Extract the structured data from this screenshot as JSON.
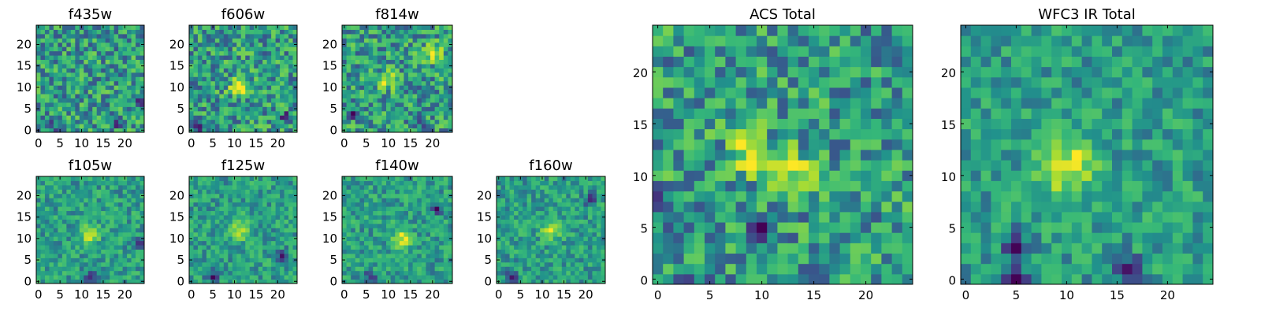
{
  "chart_data": [
    {
      "type": "heatmap",
      "title": "f435w",
      "x_ticks": [
        0,
        5,
        10,
        15,
        20
      ],
      "y_ticks": [
        0,
        5,
        10,
        15,
        20
      ],
      "xlim": [
        0,
        25
      ],
      "ylim": [
        0,
        25
      ],
      "grid_size": [
        25,
        25
      ],
      "colormap": "viridis",
      "bright_regions": [],
      "dark_regions": [
        {
          "x": 3,
          "y": 1
        },
        {
          "x": 18,
          "y": 2
        },
        {
          "x": 24,
          "y": 7
        }
      ]
    },
    {
      "type": "heatmap",
      "title": "f606w",
      "x_ticks": [
        0,
        5,
        10,
        15,
        20
      ],
      "y_ticks": [
        0,
        5,
        10,
        15,
        20
      ],
      "xlim": [
        0,
        25
      ],
      "ylim": [
        0,
        25
      ],
      "grid_size": [
        25,
        25
      ],
      "colormap": "viridis",
      "bright_regions": [
        {
          "x": 11,
          "y": 10
        }
      ],
      "dark_regions": [
        {
          "x": 2,
          "y": 1
        },
        {
          "x": 22,
          "y": 3
        }
      ]
    },
    {
      "type": "heatmap",
      "title": "f814w",
      "x_ticks": [
        0,
        5,
        10,
        15,
        20
      ],
      "y_ticks": [
        0,
        5,
        10,
        15,
        20
      ],
      "xlim": [
        0,
        25
      ],
      "ylim": [
        0,
        25
      ],
      "grid_size": [
        25,
        25
      ],
      "colormap": "viridis",
      "bright_regions": [
        {
          "x": 10,
          "y": 12
        },
        {
          "x": 20,
          "y": 18
        }
      ],
      "dark_regions": [
        {
          "x": 2,
          "y": 4
        },
        {
          "x": 17,
          "y": 2
        }
      ]
    },
    {
      "type": "heatmap",
      "title": "f105w",
      "x_ticks": [
        0,
        5,
        10,
        15,
        20
      ],
      "y_ticks": [
        0,
        5,
        10,
        15,
        20
      ],
      "xlim": [
        0,
        25
      ],
      "ylim": [
        0,
        25
      ],
      "grid_size": [
        25,
        25
      ],
      "colormap": "viridis",
      "bright_regions": [
        {
          "x": 12,
          "y": 11
        }
      ],
      "dark_regions": [
        {
          "x": 24,
          "y": 9
        },
        {
          "x": 12,
          "y": 1
        }
      ]
    },
    {
      "type": "heatmap",
      "title": "f125w",
      "x_ticks": [
        0,
        5,
        10,
        15,
        20
      ],
      "y_ticks": [
        0,
        5,
        10,
        15,
        20
      ],
      "xlim": [
        0,
        25
      ],
      "ylim": [
        0,
        25
      ],
      "grid_size": [
        25,
        25
      ],
      "colormap": "viridis",
      "bright_regions": [
        {
          "x": 11,
          "y": 12
        }
      ],
      "dark_regions": [
        {
          "x": 5,
          "y": 1
        },
        {
          "x": 21,
          "y": 6
        }
      ]
    },
    {
      "type": "heatmap",
      "title": "f140w",
      "x_ticks": [
        0,
        5,
        10,
        15,
        20
      ],
      "y_ticks": [
        0,
        5,
        10,
        15,
        20
      ],
      "xlim": [
        0,
        25
      ],
      "ylim": [
        0,
        25
      ],
      "grid_size": [
        25,
        25
      ],
      "colormap": "viridis",
      "bright_regions": [
        {
          "x": 13,
          "y": 10
        }
      ],
      "dark_regions": [
        {
          "x": 21,
          "y": 17
        },
        {
          "x": 6,
          "y": 1
        }
      ]
    },
    {
      "type": "heatmap",
      "title": "f160w",
      "x_ticks": [
        0,
        5,
        10,
        15,
        20
      ],
      "y_ticks": [
        0,
        5,
        10,
        15,
        20
      ],
      "xlim": [
        0,
        25
      ],
      "ylim": [
        0,
        25
      ],
      "grid_size": [
        25,
        25
      ],
      "colormap": "viridis",
      "bright_regions": [
        {
          "x": 12,
          "y": 12
        }
      ],
      "dark_regions": [
        {
          "x": 3,
          "y": 1
        },
        {
          "x": 21,
          "y": 19
        }
      ]
    },
    {
      "type": "heatmap",
      "title": "ACS Total",
      "x_ticks": [
        0,
        5,
        10,
        15,
        20
      ],
      "y_ticks": [
        0,
        5,
        10,
        15,
        20
      ],
      "xlim": [
        0,
        25
      ],
      "ylim": [
        0,
        25
      ],
      "grid_size": [
        25,
        25
      ],
      "colormap": "viridis",
      "bright_regions": [
        {
          "x": 9,
          "y": 12
        },
        {
          "x": 13,
          "y": 10
        }
      ],
      "dark_regions": [
        {
          "x": 3,
          "y": 0
        },
        {
          "x": 10,
          "y": 5
        },
        {
          "x": 0,
          "y": 7
        }
      ]
    },
    {
      "type": "heatmap",
      "title": "WFC3 IR Total",
      "x_ticks": [
        0,
        5,
        10,
        15,
        20
      ],
      "y_ticks": [
        0,
        5,
        10,
        15,
        20
      ],
      "xlim": [
        0,
        25
      ],
      "ylim": [
        0,
        25
      ],
      "grid_size": [
        25,
        25
      ],
      "colormap": "viridis",
      "bright_regions": [
        {
          "x": 10,
          "y": 11
        }
      ],
      "dark_regions": [
        {
          "x": 5,
          "y": 3
        },
        {
          "x": 5,
          "y": 0
        },
        {
          "x": 16,
          "y": 1
        }
      ]
    }
  ]
}
